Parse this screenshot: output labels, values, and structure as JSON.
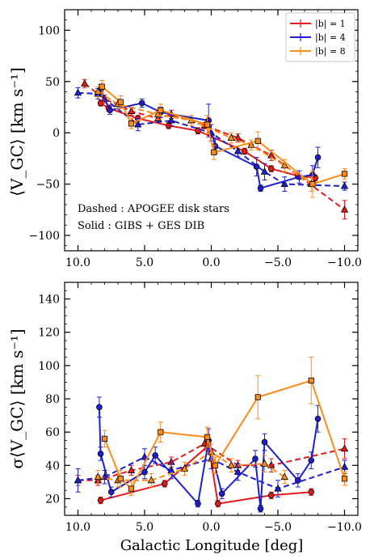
{
  "chart_data": [
    {
      "type": "line",
      "ylabel": "⟨V_GC⟩ [km s⁻¹]",
      "xlim": [
        11,
        -11
      ],
      "ylim": [
        -115,
        120
      ],
      "xticks": [
        10,
        5,
        0,
        -5,
        -10
      ],
      "xtick_labels": [
        "10.0",
        "5.0",
        "0.0",
        "−5.0",
        "−10.0"
      ],
      "yticks": [
        -100,
        -50,
        0,
        50,
        100
      ],
      "ytick_labels": [
        "−100",
        "−50",
        "0",
        "50",
        "100"
      ],
      "legend": {
        "placement": "top-right",
        "entries": [
          "|b| = 1",
          "|b| = 4",
          "|b| = 8"
        ]
      },
      "annotations": [
        "Dashed :  APOGEE disk stars",
        "Solid :  GIBS + GES DIB"
      ],
      "series": [
        {
          "name": "|b| = 1",
          "color": "#e41a1c",
          "style": "dashed",
          "marker": "triangle",
          "group": "APOGEE",
          "x": [
            9.5,
            8.0,
            6.0,
            4.0,
            3.0,
            0.5,
            -2.0,
            -4.5,
            -10.0
          ],
          "y": [
            48,
            33,
            21,
            14,
            18,
            7,
            -5,
            -22,
            -75
          ],
          "err": [
            4,
            4,
            4,
            4,
            4,
            3,
            4,
            5,
            9
          ]
        },
        {
          "name": "|b| = 1",
          "color": "#e41a1c",
          "style": "solid",
          "marker": "circle",
          "group": "GIBS+GES",
          "x": [
            8.3,
            7.7,
            5.5,
            3.2,
            1.0,
            -2.5,
            -4.5,
            -6.5,
            -7.8
          ],
          "y": [
            29,
            24,
            14,
            7,
            2,
            -18,
            -35,
            -42,
            -44
          ],
          "err": [
            3,
            3,
            3,
            3,
            3,
            3,
            3,
            3,
            3
          ]
        },
        {
          "name": "|b| = 4",
          "color": "#1f1fcf",
          "style": "dashed",
          "marker": "triangle",
          "group": "APOGEE",
          "x": [
            10.0,
            8.5,
            5.5,
            3.0,
            0.0,
            -2.0,
            -4.0,
            -5.5,
            -10.0
          ],
          "y": [
            39,
            38,
            8,
            12,
            0,
            -18,
            -38,
            -50,
            -52
          ],
          "err": [
            5,
            5,
            6,
            5,
            8,
            5,
            8,
            7,
            4
          ]
        },
        {
          "name": "|b| = 4",
          "color": "#1f1fcf",
          "style": "solid",
          "marker": "circle",
          "group": "GIBS+GES",
          "x": [
            8.3,
            7.6,
            5.2,
            3.8,
            0.2,
            -0.3,
            -3.4,
            -3.7,
            -6.6,
            -7.6,
            -8.0
          ],
          "y": [
            42,
            22,
            29,
            20,
            12,
            -13,
            -33,
            -54,
            -43,
            -41,
            -24
          ],
          "err": [
            5,
            4,
            4,
            5,
            16,
            7,
            9,
            3,
            6,
            9,
            10
          ]
        },
        {
          "name": "|b| = 8",
          "color": "#ff8c1a",
          "style": "dashed",
          "marker": "triangle",
          "group": "APOGEE",
          "x": [
            8.5,
            7.0,
            4.0,
            1.5,
            -1.5,
            -3.0,
            -5.5,
            -7.5
          ],
          "y": [
            40,
            28,
            18,
            12,
            -5,
            -12,
            -32,
            -50
          ],
          "err": [
            5,
            5,
            5,
            5,
            5,
            5,
            6,
            7
          ]
        },
        {
          "name": "|b| = 8",
          "color": "#ff8c1a",
          "style": "solid",
          "marker": "square",
          "group": "GIBS+GES",
          "x": [
            8.2,
            6.8,
            6.0,
            3.8,
            0.3,
            -0.2,
            -3.5,
            -7.6,
            -10.0
          ],
          "y": [
            45,
            30,
            9,
            22,
            8,
            -19,
            -8,
            -50,
            -40
          ],
          "err": [
            6,
            6,
            5,
            6,
            9,
            7,
            9,
            13,
            5
          ]
        }
      ]
    },
    {
      "type": "line",
      "xlabel": "Galactic Longitude [deg]",
      "ylabel": "σ⟨V_GC⟩ [km s⁻¹]",
      "xlim": [
        11,
        -11
      ],
      "ylim": [
        10,
        150
      ],
      "xticks": [
        10,
        5,
        0,
        -5,
        -10
      ],
      "xtick_labels": [
        "10.0",
        "5.0",
        "0.0",
        "−5.0",
        "−10.0"
      ],
      "yticks": [
        20,
        40,
        60,
        80,
        100,
        120,
        140
      ],
      "ytick_labels": [
        "20",
        "40",
        "60",
        "80",
        "100",
        "120",
        "140"
      ],
      "series": [
        {
          "name": "|b| = 1",
          "color": "#e41a1c",
          "style": "dashed",
          "marker": "triangle",
          "x": [
            10.0,
            8.5,
            6.0,
            3.0,
            0.5,
            -2.0,
            -4.5,
            -10.0
          ],
          "y": [
            31,
            31,
            37,
            42,
            53,
            40,
            40,
            50
          ],
          "err": [
            3,
            3,
            3,
            3,
            4,
            3,
            4,
            6
          ]
        },
        {
          "name": "|b| = 1",
          "color": "#e41a1c",
          "style": "solid",
          "marker": "circle",
          "x": [
            8.3,
            3.5,
            0.2,
            -0.5,
            -4.5,
            -7.5
          ],
          "y": [
            19,
            29,
            52,
            17,
            22,
            24
          ],
          "err": [
            2,
            2,
            3,
            2,
            2,
            2
          ]
        },
        {
          "name": "|b| = 4",
          "color": "#1f1fcf",
          "style": "dashed",
          "marker": "triangle",
          "x": [
            10.0,
            8.0,
            5.0,
            3.0,
            0.0,
            -2.0,
            -5.0,
            -10.0
          ],
          "y": [
            31,
            33,
            45,
            37,
            44,
            36,
            26,
            39
          ],
          "err": [
            7,
            4,
            5,
            5,
            6,
            5,
            5,
            4
          ]
        },
        {
          "name": "|b| = 4",
          "color": "#1f1fcf",
          "style": "solid",
          "marker": "circle",
          "x": [
            8.4,
            8.3,
            7.5,
            5.0,
            4.2,
            1.0,
            0.2,
            -0.8,
            -3.3,
            -3.7,
            -4.0,
            -6.5,
            -7.5,
            -8.0
          ],
          "y": [
            75,
            47,
            24,
            36,
            46,
            17,
            55,
            23,
            44,
            14,
            54,
            31,
            43,
            68
          ],
          "err": [
            6,
            4,
            3,
            4,
            5,
            2,
            7,
            3,
            5,
            2,
            5,
            4,
            5,
            8
          ]
        },
        {
          "name": "|b| = 8",
          "color": "#ff8c1a",
          "style": "dashed",
          "marker": "triangle",
          "x": [
            8.5,
            7.0,
            4.5,
            2.0,
            0.0,
            -1.5,
            -4.0,
            -5.5
          ],
          "y": [
            33,
            31,
            31,
            38,
            48,
            40,
            41,
            33
          ],
          "err": [
            4,
            4,
            4,
            4,
            5,
            4,
            5,
            4
          ]
        },
        {
          "name": "|b| = 8",
          "color": "#ff8c1a",
          "style": "solid",
          "marker": "square",
          "x": [
            8.0,
            6.8,
            6.0,
            3.8,
            0.3,
            -0.3,
            -3.5,
            -7.5,
            -10.0
          ],
          "y": [
            56,
            32,
            26,
            60,
            57,
            40,
            81,
            91,
            32
          ],
          "err": [
            5,
            5,
            4,
            6,
            6,
            5,
            13,
            14,
            4
          ]
        }
      ]
    }
  ]
}
